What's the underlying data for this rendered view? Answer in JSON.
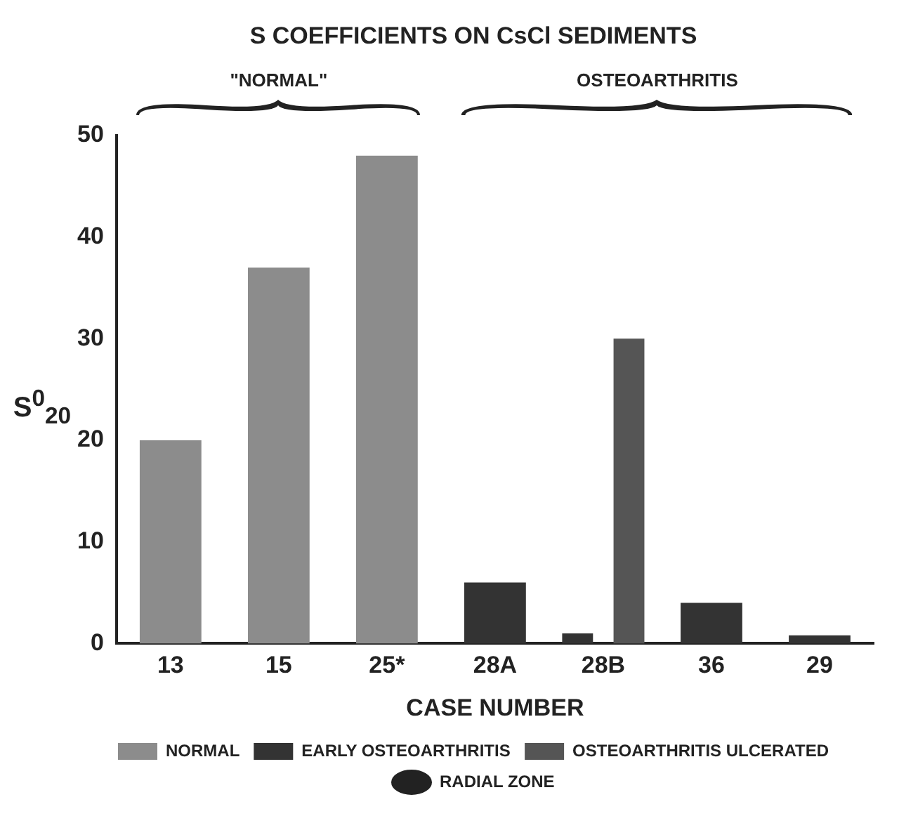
{
  "chart_data": {
    "type": "bar",
    "title": "S COEFFICIENTS ON CsCl SEDIMENTS",
    "xlabel": "CASE NUMBER",
    "ylabel": "S$^{0}$$_{20}$",
    "categories": [
      "13",
      "15",
      "25*",
      "28A",
      "28B",
      "36",
      "29"
    ],
    "series": [
      {
        "name": "NORMAL",
        "color": "#8c8c8c",
        "values": [
          20,
          37,
          48,
          null,
          null,
          null,
          null
        ]
      },
      {
        "name": "EARLY OSTEOARTHRITIS",
        "color": "#333333",
        "values": [
          null,
          null,
          null,
          6,
          1,
          4,
          0.8
        ]
      },
      {
        "name": "OSTEOARTHRITIS ULCERATED",
        "color": "#555555",
        "values": [
          null,
          null,
          null,
          null,
          30,
          null,
          null
        ]
      },
      {
        "name": "RADIAL ZONE",
        "type": "scatter",
        "marker": "circle",
        "color": "#222222",
        "values": [
          null,
          null,
          null,
          null,
          null,
          null,
          null
        ]
      }
    ],
    "annotations": [
      "\"NORMAL\"",
      "OSTEOARTHRITIS"
    ],
    "ylim": [
      0,
      50
    ],
    "yticks": [
      0,
      10,
      20,
      30,
      40,
      50
    ],
    "grid": false,
    "legend": "bottom"
  }
}
